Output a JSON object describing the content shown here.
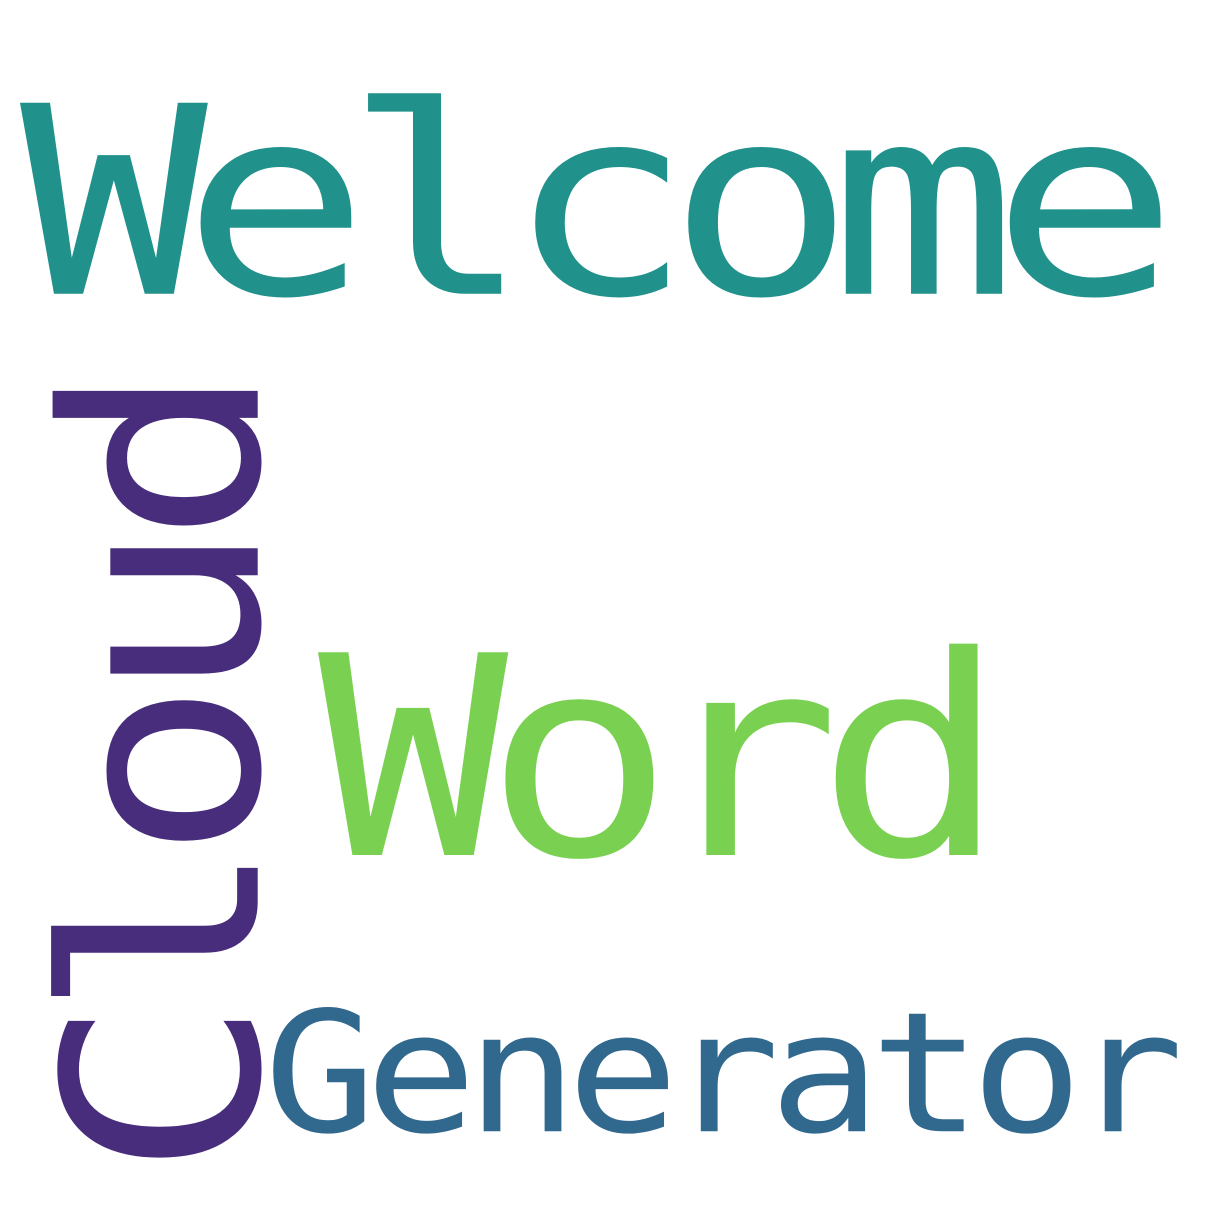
{
  "word_cloud": {
    "background_color": "#ffffff",
    "words": {
      "welcome": {
        "text": "Welcome",
        "color": "#21918c"
      },
      "word": {
        "text": "Word",
        "color": "#7ad151"
      },
      "generator": {
        "text": "Generator",
        "color": "#31688e"
      },
      "cloud": {
        "text": "Cloud",
        "color": "#472d7b",
        "orientation": "vertical"
      }
    }
  }
}
